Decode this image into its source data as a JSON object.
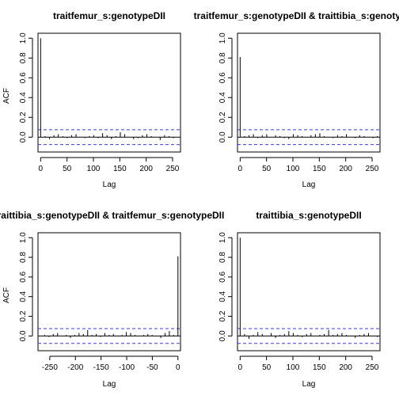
{
  "chart_data": [
    {
      "type": "bar",
      "title": "traitfemur_s:genotypeDII",
      "xlabel": "Lag",
      "ylabel": "ACF",
      "xlim": [
        -5,
        265
      ],
      "ylim": [
        -0.15,
        1.05
      ],
      "xticks": [
        0,
        50,
        100,
        150,
        200,
        250
      ],
      "yticks": [
        0.0,
        0.2,
        0.4,
        0.6,
        0.8,
        1.0
      ],
      "ci": 0.075,
      "lag_start": 0,
      "lag_end": 260,
      "acf_values": [
        1.0,
        0.01,
        -0.02,
        0.02,
        0.03,
        0.01,
        -0.01,
        0.02,
        0.03,
        0.0,
        -0.01,
        0.01,
        0.02,
        -0.01,
        0.04,
        0.02,
        -0.02,
        0.01,
        0.05,
        0.03,
        0.0,
        -0.02,
        -0.01,
        0.02,
        0.03,
        0.01,
        0.0,
        -0.03,
        0.02,
        0.01,
        -0.01,
        0.0
      ]
    },
    {
      "type": "bar",
      "title": "traitfemur_s:genotypeDII & traittibia_s:genotypeDII",
      "xlabel": "Lag",
      "ylabel": "",
      "xlim": [
        -5,
        265
      ],
      "ylim": [
        -0.15,
        1.05
      ],
      "xticks": [
        0,
        50,
        100,
        150,
        200,
        250
      ],
      "yticks": [
        0.0,
        0.2,
        0.4,
        0.6,
        0.8,
        1.0
      ],
      "ci": 0.075,
      "lag_start": 0,
      "lag_end": 260,
      "acf_values": [
        0.81,
        0.01,
        0.02,
        0.03,
        -0.01,
        0.02,
        0.03,
        0.0,
        0.02,
        0.01,
        -0.01,
        -0.02,
        0.03,
        0.02,
        0.01,
        0.0,
        0.02,
        0.03,
        0.04,
        0.01,
        0.0,
        -0.01,
        0.02,
        0.01,
        0.03,
        0.0,
        -0.01,
        0.02,
        0.01,
        0.0,
        -0.01,
        0.01
      ]
    },
    {
      "type": "bar",
      "title": "traittibia_s:genotypeDII & traitfemur_s:genotypeDII",
      "xlabel": "Lag",
      "ylabel": "ACF",
      "xlim": [
        -273,
        5
      ],
      "ylim": [
        -0.15,
        1.05
      ],
      "xticks": [
        -250,
        -200,
        -150,
        -100,
        -50,
        0
      ],
      "yticks": [
        0.0,
        0.2,
        0.4,
        0.6,
        0.8,
        1.0
      ],
      "ci": 0.075,
      "lag_start": -260,
      "lag_end": 0,
      "acf_values": [
        0.01,
        -0.01,
        0.02,
        0.03,
        0.0,
        0.01,
        -0.02,
        0.01,
        0.03,
        0.02,
        0.06,
        0.01,
        0.02,
        -0.01,
        0.03,
        0.01,
        0.02,
        0.0,
        0.01,
        0.04,
        0.03,
        0.01,
        0.0,
        0.01,
        0.02,
        0.01,
        0.0,
        -0.02,
        0.03,
        0.05,
        0.01,
        0.81
      ]
    },
    {
      "type": "bar",
      "title": "traittibia_s:genotypeDII",
      "xlabel": "Lag",
      "ylabel": "",
      "xlim": [
        -5,
        265
      ],
      "ylim": [
        -0.15,
        1.05
      ],
      "xticks": [
        0,
        50,
        100,
        150,
        200,
        250
      ],
      "yticks": [
        0.0,
        0.2,
        0.4,
        0.6,
        0.8,
        1.0
      ],
      "ci": 0.075,
      "lag_start": 0,
      "lag_end": 260,
      "acf_values": [
        1.0,
        0.02,
        -0.03,
        0.01,
        0.04,
        0.02,
        0.0,
        0.03,
        -0.02,
        0.01,
        0.02,
        0.05,
        0.03,
        0.01,
        -0.01,
        0.02,
        0.03,
        0.0,
        0.01,
        0.02,
        0.06,
        0.01,
        0.02,
        0.03,
        0.01,
        0.0,
        -0.02,
        0.01,
        0.02,
        0.03,
        0.0,
        -0.01
      ]
    }
  ],
  "colors": {
    "ci_line": "#3b3bd6",
    "axis": "#000000"
  }
}
